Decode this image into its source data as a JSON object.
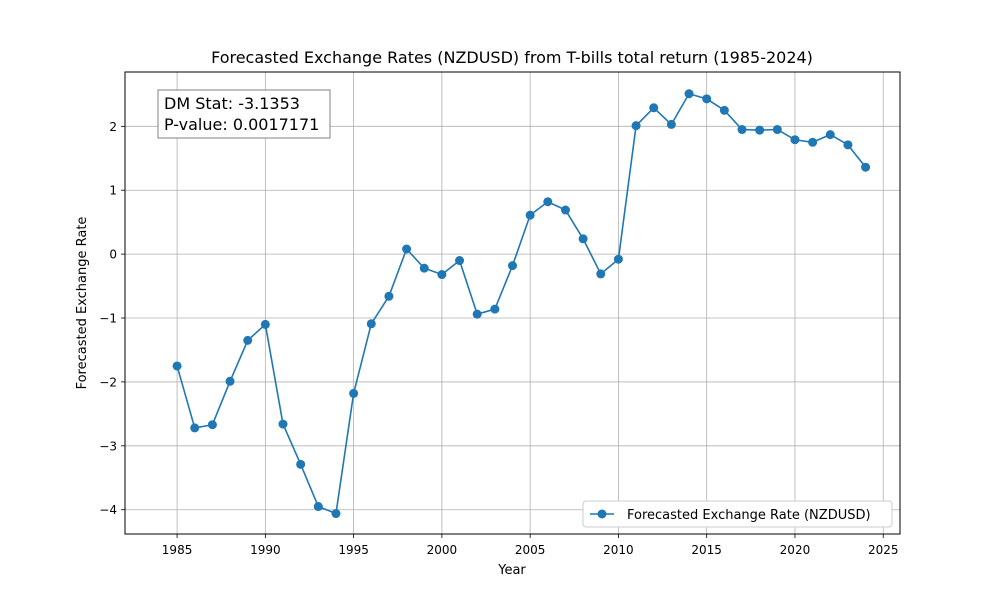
{
  "chart_data": {
    "type": "line",
    "title": "Forecasted Exchange Rates (NZDUSD) from T-bills total return (1985-2024)",
    "xlabel": "Year",
    "ylabel": "Forecasted Exchange Rate",
    "xlim": [
      1982.05,
      2025.95
    ],
    "ylim": [
      -4.38,
      2.85
    ],
    "xticks": [
      1985,
      1990,
      1995,
      2000,
      2005,
      2010,
      2015,
      2020,
      2025
    ],
    "xtick_labels": [
      "1985",
      "1990",
      "1995",
      "2000",
      "2005",
      "2010",
      "2015",
      "2020",
      "2025"
    ],
    "yticks": [
      -4,
      -3,
      -2,
      -1,
      0,
      1,
      2
    ],
    "ytick_labels": [
      "−4",
      "−3",
      "−2",
      "−1",
      "0",
      "1",
      "2"
    ],
    "grid": true,
    "legend_position": "lower-right",
    "annotation": {
      "line1": "DM Stat: -3.1353",
      "line2": "P-value: 0.0017171"
    },
    "series": [
      {
        "name": "Forecasted Exchange Rate (NZDUSD)",
        "color": "#1f77b4",
        "marker": "circle",
        "x": [
          1985,
          1986,
          1987,
          1988,
          1989,
          1990,
          1991,
          1992,
          1993,
          1994,
          1995,
          1996,
          1997,
          1998,
          1999,
          2000,
          2001,
          2002,
          2003,
          2004,
          2005,
          2006,
          2007,
          2008,
          2009,
          2010,
          2011,
          2012,
          2013,
          2014,
          2015,
          2016,
          2017,
          2018,
          2019,
          2020,
          2021,
          2022,
          2023,
          2024
        ],
        "y": [
          -1.75,
          -2.72,
          -2.67,
          -1.99,
          -1.35,
          -1.1,
          -2.66,
          -3.29,
          -3.95,
          -4.06,
          -2.18,
          -1.09,
          -0.66,
          0.08,
          -0.22,
          -0.32,
          -0.1,
          -0.94,
          -0.86,
          -0.18,
          0.61,
          0.82,
          0.69,
          0.24,
          -0.31,
          -0.08,
          2.01,
          2.29,
          2.03,
          2.51,
          2.43,
          2.25,
          1.95,
          1.94,
          1.95,
          1.79,
          1.75,
          1.87,
          1.71,
          1.36
        ]
      }
    ]
  }
}
